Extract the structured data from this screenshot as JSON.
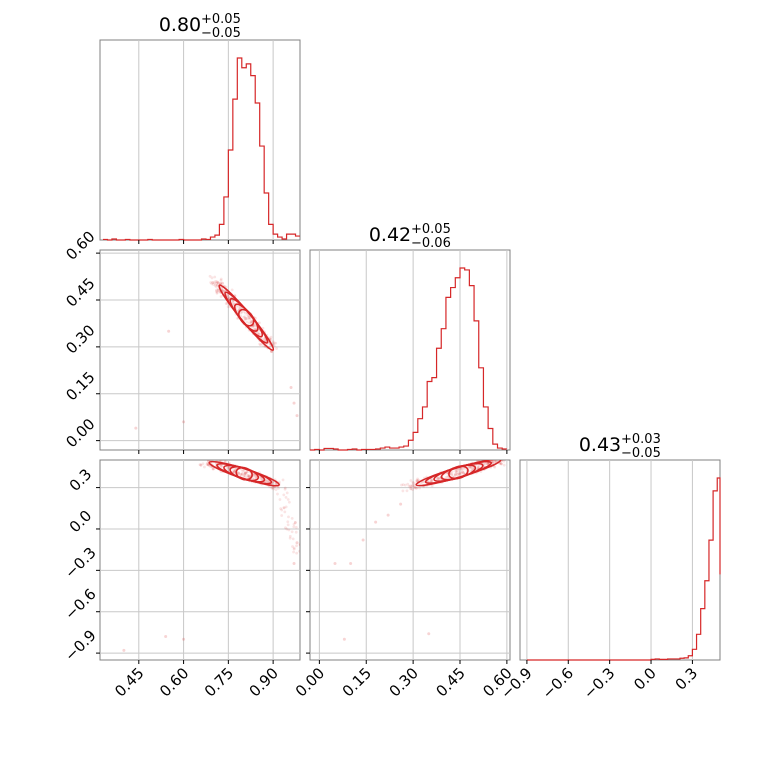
{
  "chart_data": [
    {
      "panel": "marginal-p1",
      "type": "histogram",
      "title": {
        "median": "0.80",
        "plus": "+0.05",
        "minus": "−0.05"
      },
      "color": "#d62728",
      "xlim": [
        0.32,
        0.99
      ],
      "xticks": [
        0.45,
        0.6,
        0.75,
        0.9
      ],
      "bins": [
        0.33,
        0.345,
        0.36,
        0.375,
        0.39,
        0.405,
        0.42,
        0.435,
        0.45,
        0.465,
        0.48,
        0.495,
        0.51,
        0.525,
        0.54,
        0.555,
        0.57,
        0.585,
        0.6,
        0.615,
        0.63,
        0.645,
        0.66,
        0.675,
        0.69,
        0.705,
        0.72,
        0.735,
        0.75,
        0.765,
        0.78,
        0.795,
        0.81,
        0.825,
        0.84,
        0.855,
        0.87,
        0.885,
        0.9,
        0.915,
        0.93,
        0.945,
        0.96,
        0.975,
        0.99
      ],
      "values": [
        0.003,
        0,
        0.005,
        0,
        0,
        0.003,
        0,
        0,
        0,
        0,
        0.003,
        0,
        0,
        0,
        0,
        0,
        0,
        0.003,
        0,
        0,
        0,
        0,
        0.005,
        0.003,
        0.015,
        0.025,
        0.08,
        0.22,
        0.46,
        0.72,
        0.93,
        0.88,
        0.9,
        0.84,
        0.7,
        0.48,
        0.24,
        0.08,
        0.03,
        0.015,
        0.005,
        0.03,
        0.03,
        0.02
      ]
    },
    {
      "panel": "marginal-p2",
      "type": "histogram",
      "title": {
        "median": "0.42",
        "plus": "+0.05",
        "minus": "−0.06"
      },
      "color": "#d62728",
      "xlim": [
        -0.03,
        0.61
      ],
      "xticks": [
        0.0,
        0.15,
        0.3,
        0.45,
        0.6
      ],
      "bins": [
        -0.03,
        -0.015,
        0,
        0.015,
        0.03,
        0.045,
        0.06,
        0.075,
        0.09,
        0.105,
        0.12,
        0.135,
        0.15,
        0.165,
        0.18,
        0.195,
        0.21,
        0.225,
        0.24,
        0.255,
        0.27,
        0.285,
        0.3,
        0.315,
        0.33,
        0.345,
        0.36,
        0.375,
        0.39,
        0.405,
        0.42,
        0.435,
        0.45,
        0.465,
        0.48,
        0.495,
        0.51,
        0.525,
        0.54,
        0.555,
        0.57,
        0.585,
        0.6
      ],
      "values": [
        0,
        0.003,
        0,
        0.008,
        0.008,
        0.005,
        0,
        0,
        0.003,
        0.005,
        0,
        0.003,
        0.003,
        0.003,
        0.005,
        0.01,
        0.015,
        0.01,
        0.01,
        0.015,
        0.02,
        0.05,
        0.09,
        0.16,
        0.22,
        0.35,
        0.37,
        0.52,
        0.62,
        0.78,
        0.83,
        0.88,
        0.93,
        0.92,
        0.84,
        0.66,
        0.42,
        0.22,
        0.11,
        0.03,
        0.01,
        0.005
      ]
    },
    {
      "panel": "marginal-p3",
      "type": "histogram",
      "title": {
        "median": "0.43",
        "plus": "+0.03",
        "minus": "−0.05"
      },
      "color": "#d62728",
      "xlim": [
        -0.95,
        0.5
      ],
      "xticks": [
        -0.9,
        -0.6,
        -0.3,
        0.0,
        0.3
      ],
      "bins": [
        -0.9,
        -0.87,
        -0.84,
        -0.81,
        -0.78,
        -0.75,
        -0.72,
        -0.69,
        -0.66,
        -0.63,
        -0.6,
        -0.57,
        -0.54,
        -0.51,
        -0.48,
        -0.45,
        -0.42,
        -0.39,
        -0.36,
        -0.33,
        -0.3,
        -0.27,
        -0.24,
        -0.21,
        -0.18,
        -0.15,
        -0.12,
        -0.09,
        -0.06,
        -0.03,
        0,
        0.03,
        0.06,
        0.09,
        0.12,
        0.15,
        0.18,
        0.21,
        0.24,
        0.27,
        0.3,
        0.33,
        0.36,
        0.39,
        0.42,
        0.45,
        0.48,
        0.5
      ],
      "values": [
        0,
        0,
        0,
        0,
        0,
        0,
        0,
        0,
        0,
        0,
        0,
        0,
        0,
        0,
        0,
        0,
        0,
        0,
        0,
        0,
        0,
        0,
        0,
        0,
        0,
        0,
        0,
        0,
        0,
        0,
        0.003,
        0.005,
        0.003,
        0.003,
        0.005,
        0.005,
        0.005,
        0.008,
        0.01,
        0.02,
        0.05,
        0.12,
        0.24,
        0.37,
        0.56,
        0.79,
        0.85,
        0.4
      ]
    },
    {
      "panel": "joint-p1-p2",
      "type": "scatter",
      "color": "#d62728",
      "xlim": [
        0.32,
        0.99
      ],
      "ylim": [
        -0.03,
        0.61
      ],
      "yticks": [
        0.0,
        0.15,
        0.3,
        0.45,
        0.6
      ],
      "trend": {
        "x0": 0.7,
        "y0": 0.52,
        "x1": 0.9,
        "y1": 0.29
      },
      "outliers": [
        [
          0.44,
          0.04
        ],
        [
          0.55,
          0.35
        ],
        [
          0.6,
          0.06
        ],
        [
          0.97,
          0.12
        ],
        [
          0.98,
          0.08
        ],
        [
          0.96,
          0.17
        ]
      ]
    },
    {
      "panel": "joint-p1-p3",
      "type": "scatter",
      "color": "#d62728",
      "xlim": [
        0.32,
        0.99
      ],
      "ylim": [
        -0.95,
        0.5
      ],
      "yticks": [
        -0.9,
        -0.6,
        -0.3,
        0.0,
        0.3
      ],
      "trend": {
        "x0": 0.66,
        "y0": 0.5,
        "x1": 0.92,
        "y1": 0.32,
        "x2": 0.99,
        "y2": -0.2
      },
      "outliers": [
        [
          0.54,
          -0.78
        ],
        [
          0.6,
          -0.8
        ],
        [
          0.97,
          -0.25
        ],
        [
          0.98,
          -0.1
        ],
        [
          0.4,
          -0.88
        ]
      ]
    },
    {
      "panel": "joint-p2-p3",
      "type": "scatter",
      "color": "#d62728",
      "xlim": [
        -0.03,
        0.61
      ],
      "ylim": [
        -0.95,
        0.5
      ],
      "trend": {
        "x0": 0.28,
        "y0": 0.3,
        "x1": 0.58,
        "y1": 0.5
      },
      "outliers": [
        [
          0.05,
          -0.25
        ],
        [
          0.1,
          -0.25
        ],
        [
          0.14,
          -0.08
        ],
        [
          0.18,
          0.05
        ],
        [
          0.22,
          0.1
        ],
        [
          0.35,
          -0.76
        ],
        [
          0.08,
          -0.8
        ],
        [
          0.26,
          0.18
        ]
      ]
    }
  ]
}
